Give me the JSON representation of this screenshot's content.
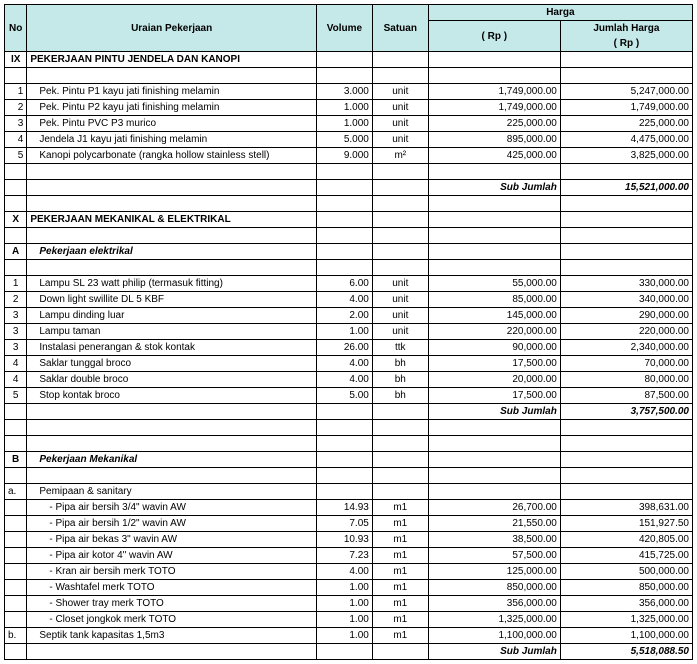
{
  "headers": {
    "no": "No",
    "desc": "Uraian Pekerjaan",
    "vol": "Volume",
    "unit": "Satuan",
    "harga": "Harga",
    "rp": "( Rp )",
    "jumlah": "Jumlah  Harga",
    "jumlah_rp": "( Rp )"
  },
  "sIX": {
    "no": "IX",
    "title": "PEKERJAAN PINTU JENDELA DAN KANOPI"
  },
  "ix1": {
    "no": "1",
    "desc": "Pek. Pintu P1 kayu jati finishing melamin",
    "vol": "3.000",
    "unit": "unit",
    "price": "1,749,000.00",
    "total": "5,247,000.00"
  },
  "ix2": {
    "no": "2",
    "desc": "Pek. Pintu P2 kayu jati finishing melamin",
    "vol": "1.000",
    "unit": "unit",
    "price": "1,749,000.00",
    "total": "1,749,000.00"
  },
  "ix3": {
    "no": "3",
    "desc": "Pek. Pintu PVC P3 murico",
    "vol": "1.000",
    "unit": "unit",
    "price": "225,000.00",
    "total": "225,000.00"
  },
  "ix4": {
    "no": "4",
    "desc": "Jendela J1 kayu jati finishing melamin",
    "vol": "5.000",
    "unit": "unit",
    "price": "895,000.00",
    "total": "4,475,000.00"
  },
  "ix5": {
    "no": "5",
    "desc": "Kanopi polycarbonate (rangka hollow stainless stell)",
    "vol": "9.000",
    "unit": "m²",
    "price": "425,000.00",
    "total": "3,825,000.00"
  },
  "ix_sub_lbl": "Sub Jumlah",
  "ix_sub_val": "15,521,000.00",
  "sX": {
    "no": "X",
    "title": "PEKERJAAN MEKANIKAL & ELEKTRIKAL"
  },
  "sA": {
    "no": "A",
    "title": "Pekerjaan elektrikal"
  },
  "a1": {
    "no": "1",
    "desc": "Lampu SL 23 watt philip (termasuk fitting)",
    "vol": "6.00",
    "unit": "unit",
    "price": "55,000.00",
    "total": "330,000.00"
  },
  "a2": {
    "no": "2",
    "desc": "Down light swillite DL 5 KBF",
    "vol": "4.00",
    "unit": "unit",
    "price": "85,000.00",
    "total": "340,000.00"
  },
  "a3": {
    "no": "3",
    "desc": "Lampu dinding luar",
    "vol": "2.00",
    "unit": "unit",
    "price": "145,000.00",
    "total": "290,000.00"
  },
  "a4": {
    "no": "3",
    "desc": "Lampu taman",
    "vol": "1.00",
    "unit": "unit",
    "price": "220,000.00",
    "total": "220,000.00"
  },
  "a5": {
    "no": "3",
    "desc": "Instalasi penerangan & stok kontak",
    "vol": "26.00",
    "unit": "ttk",
    "price": "90,000.00",
    "total": "2,340,000.00"
  },
  "a6": {
    "no": "4",
    "desc": "Saklar tunggal broco",
    "vol": "4.00",
    "unit": "bh",
    "price": "17,500.00",
    "total": "70,000.00"
  },
  "a7": {
    "no": "4",
    "desc": "Saklar double broco",
    "vol": "4.00",
    "unit": "bh",
    "price": "20,000.00",
    "total": "80,000.00"
  },
  "a8": {
    "no": "5",
    "desc": "Stop kontak broco",
    "vol": "5.00",
    "unit": "bh",
    "price": "17,500.00",
    "total": "87,500.00"
  },
  "a_sub_lbl": "Sub Jumlah",
  "a_sub_val": "3,757,500.00",
  "sB": {
    "no": "B",
    "title": "Pekerjaan Mekanikal"
  },
  "ba": {
    "no": "a.",
    "desc": "Pemipaan & sanitary"
  },
  "b1": {
    "desc": "-   Pipa air bersih 3/4\" wavin AW",
    "vol": "14.93",
    "unit": "m1",
    "price": "26,700.00",
    "total": "398,631.00"
  },
  "b2": {
    "desc": "-   Pipa air bersih 1/2\" wavin AW",
    "vol": "7.05",
    "unit": "m1",
    "price": "21,550.00",
    "total": "151,927.50"
  },
  "b3": {
    "desc": "-   Pipa air bekas 3\" wavin AW",
    "vol": "10.93",
    "unit": "m1",
    "price": "38,500.00",
    "total": "420,805.00"
  },
  "b4": {
    "desc": "-   Pipa air kotor 4\" wavin AW",
    "vol": "7.23",
    "unit": "m1",
    "price": "57,500.00",
    "total": "415,725.00"
  },
  "b5": {
    "desc": "-   Kran air bersih merk TOTO",
    "vol": "4.00",
    "unit": "m1",
    "price": "125,000.00",
    "total": "500,000.00"
  },
  "b6": {
    "desc": "-   Washtafel merk TOTO",
    "vol": "1.00",
    "unit": "m1",
    "price": "850,000.00",
    "total": "850,000.00"
  },
  "b7": {
    "desc": "-   Shower tray merk TOTO",
    "vol": "1.00",
    "unit": "m1",
    "price": "356,000.00",
    "total": "356,000.00"
  },
  "b8": {
    "desc": "-   Closet jongkok merk TOTO",
    "vol": "1.00",
    "unit": "m1",
    "price": "1,325,000.00",
    "total": "1,325,000.00"
  },
  "bb": {
    "no": "b.",
    "desc": "Septik tank kapasitas 1,5m3",
    "vol": "1.00",
    "unit": "m1",
    "price": "1,100,000.00",
    "total": "1,100,000.00"
  },
  "b_sub_lbl": "Sub Jumlah",
  "b_sub_val": "5,518,088.50"
}
